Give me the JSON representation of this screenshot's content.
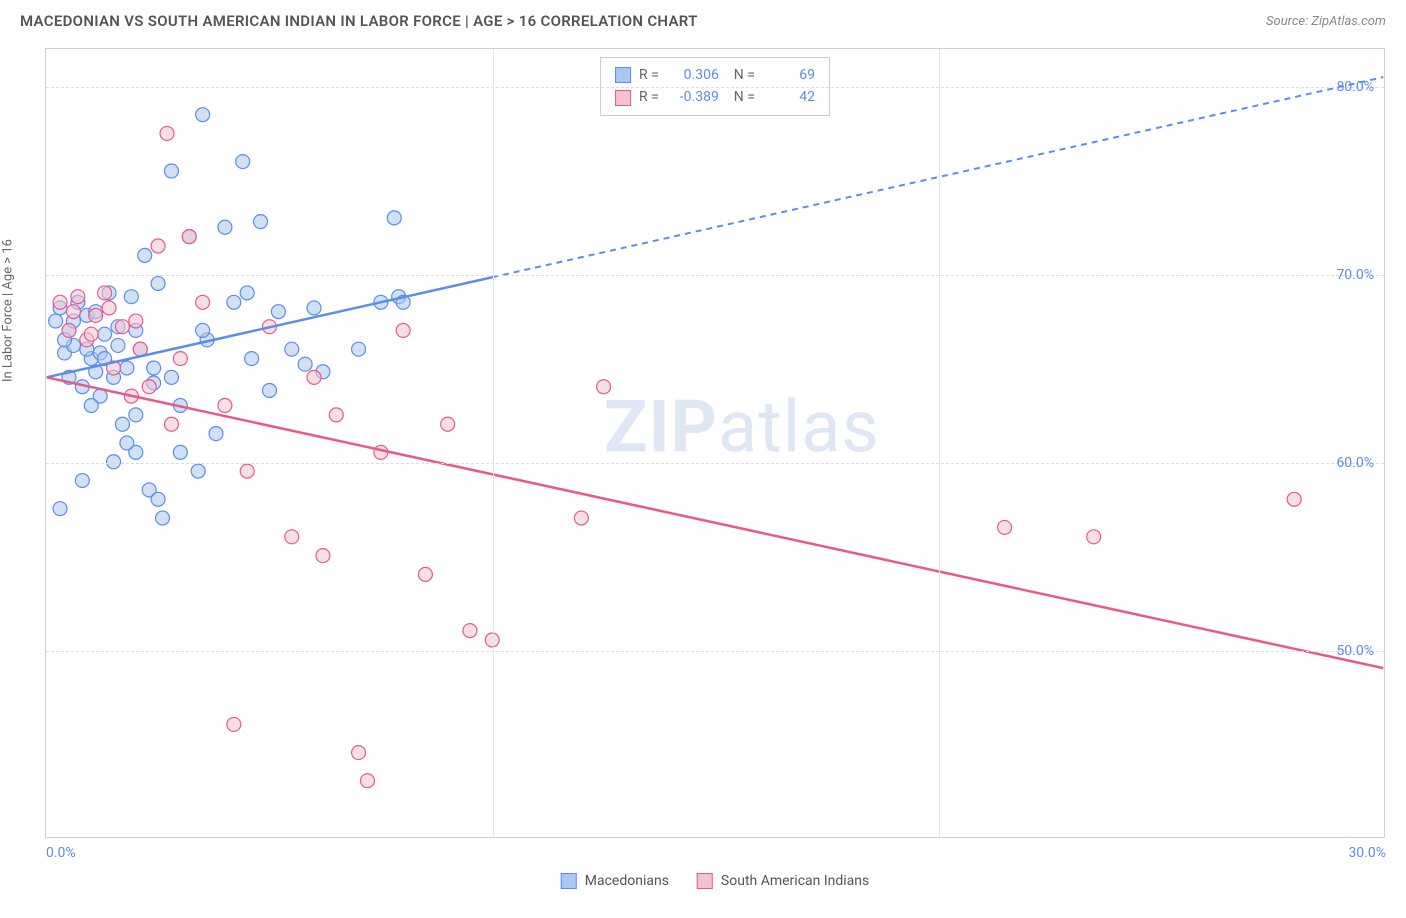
{
  "header": {
    "title": "MACEDONIAN VS SOUTH AMERICAN INDIAN IN LABOR FORCE | AGE > 16 CORRELATION CHART",
    "source": "Source: ZipAtlas.com"
  },
  "chart": {
    "type": "scatter",
    "y_axis_label": "In Labor Force | Age > 16",
    "xlim": [
      0,
      30
    ],
    "ylim": [
      40,
      82
    ],
    "x_ticks": [
      0,
      30
    ],
    "x_tick_labels": [
      "0.0%",
      "30.0%"
    ],
    "x_minor_ticks": [
      10,
      20
    ],
    "y_ticks": [
      50,
      60,
      70,
      80
    ],
    "y_tick_labels": [
      "50.0%",
      "60.0%",
      "70.0%",
      "80.0%"
    ],
    "background_color": "#ffffff",
    "grid_color": "#dddddd",
    "border_color": "#d0d0d0",
    "marker_radius": 7,
    "marker_opacity": 0.55,
    "series": [
      {
        "name": "Macedonians",
        "color_fill": "#a9c7f0",
        "color_stroke": "#5b8def",
        "r_value": "0.306",
        "n_value": "69",
        "trend": {
          "x1": 0,
          "y1": 64.5,
          "x2": 30,
          "y2": 80.5,
          "solid_until_x": 10
        },
        "points": [
          [
            0.2,
            67.5
          ],
          [
            0.3,
            68.2
          ],
          [
            0.4,
            65.8
          ],
          [
            0.5,
            67.0
          ],
          [
            0.6,
            66.2
          ],
          [
            0.7,
            68.5
          ],
          [
            0.8,
            64.0
          ],
          [
            0.9,
            67.8
          ],
          [
            1.0,
            65.5
          ],
          [
            1.1,
            68.0
          ],
          [
            1.2,
            63.5
          ],
          [
            1.3,
            66.8
          ],
          [
            1.4,
            69.0
          ],
          [
            1.5,
            64.5
          ],
          [
            1.6,
            67.2
          ],
          [
            1.7,
            62.0
          ],
          [
            1.8,
            65.0
          ],
          [
            1.9,
            68.8
          ],
          [
            2.0,
            60.5
          ],
          [
            2.1,
            66.0
          ],
          [
            2.2,
            71.0
          ],
          [
            2.3,
            58.5
          ],
          [
            2.4,
            64.2
          ],
          [
            2.5,
            69.5
          ],
          [
            2.6,
            57.0
          ],
          [
            2.8,
            75.5
          ],
          [
            3.0,
            63.0
          ],
          [
            3.2,
            72.0
          ],
          [
            3.4,
            59.5
          ],
          [
            3.5,
            78.5
          ],
          [
            3.6,
            66.5
          ],
          [
            3.8,
            61.5
          ],
          [
            4.0,
            72.5
          ],
          [
            4.2,
            68.5
          ],
          [
            4.4,
            76.0
          ],
          [
            4.6,
            65.5
          ],
          [
            4.8,
            72.8
          ],
          [
            5.0,
            63.8
          ],
          [
            5.2,
            68.0
          ],
          [
            5.5,
            66.0
          ],
          [
            5.8,
            65.2
          ],
          [
            6.0,
            68.2
          ],
          [
            6.2,
            64.8
          ],
          [
            7.0,
            66.0
          ],
          [
            7.5,
            68.5
          ],
          [
            7.8,
            73.0
          ],
          [
            7.9,
            68.8
          ],
          [
            8.0,
            68.5
          ],
          [
            0.3,
            57.5
          ],
          [
            0.8,
            59.0
          ],
          [
            1.5,
            60.0
          ],
          [
            2.0,
            62.5
          ],
          [
            2.5,
            58.0
          ],
          [
            3.0,
            60.5
          ],
          [
            1.0,
            63.0
          ],
          [
            1.8,
            61.0
          ],
          [
            0.5,
            64.5
          ],
          [
            1.2,
            65.8
          ],
          [
            2.8,
            64.5
          ],
          [
            3.5,
            67.0
          ],
          [
            4.5,
            69.0
          ],
          [
            0.4,
            66.5
          ],
          [
            0.6,
            67.5
          ],
          [
            0.9,
            66.0
          ],
          [
            1.1,
            64.8
          ],
          [
            1.3,
            65.5
          ],
          [
            1.6,
            66.2
          ],
          [
            2.0,
            67.0
          ],
          [
            2.4,
            65.0
          ]
        ]
      },
      {
        "name": "South American Indians",
        "color_fill": "#f5c2d1",
        "color_stroke": "#e85a8a",
        "r_value": "-0.389",
        "n_value": "42",
        "trend": {
          "x1": 0,
          "y1": 64.5,
          "x2": 30,
          "y2": 49.0,
          "solid_until_x": 30
        },
        "points": [
          [
            0.3,
            68.5
          ],
          [
            0.5,
            67.0
          ],
          [
            0.7,
            68.8
          ],
          [
            0.9,
            66.5
          ],
          [
            1.1,
            67.8
          ],
          [
            1.3,
            69.0
          ],
          [
            1.5,
            65.0
          ],
          [
            1.7,
            67.2
          ],
          [
            1.9,
            63.5
          ],
          [
            2.1,
            66.0
          ],
          [
            2.3,
            64.0
          ],
          [
            2.5,
            71.5
          ],
          [
            2.8,
            62.0
          ],
          [
            3.0,
            65.5
          ],
          [
            3.5,
            68.5
          ],
          [
            4.0,
            63.0
          ],
          [
            4.5,
            59.5
          ],
          [
            5.0,
            67.2
          ],
          [
            5.5,
            56.0
          ],
          [
            6.0,
            64.5
          ],
          [
            6.2,
            55.0
          ],
          [
            6.5,
            62.5
          ],
          [
            7.0,
            44.5
          ],
          [
            7.2,
            43.0
          ],
          [
            7.5,
            60.5
          ],
          [
            8.0,
            67.0
          ],
          [
            8.5,
            54.0
          ],
          [
            9.0,
            62.0
          ],
          [
            9.5,
            51.0
          ],
          [
            10.0,
            50.5
          ],
          [
            12.5,
            64.0
          ],
          [
            12.0,
            57.0
          ],
          [
            0.6,
            68.0
          ],
          [
            1.0,
            66.8
          ],
          [
            1.4,
            68.2
          ],
          [
            2.0,
            67.5
          ],
          [
            2.7,
            77.5
          ],
          [
            3.2,
            72.0
          ],
          [
            4.2,
            46.0
          ],
          [
            21.5,
            56.5
          ],
          [
            23.5,
            56.0
          ],
          [
            28.0,
            58.0
          ]
        ]
      }
    ]
  },
  "legend_bottom": {
    "items": [
      "Macedonians",
      "South American Indians"
    ]
  },
  "watermark": {
    "bold": "ZIP",
    "rest": "atlas"
  }
}
